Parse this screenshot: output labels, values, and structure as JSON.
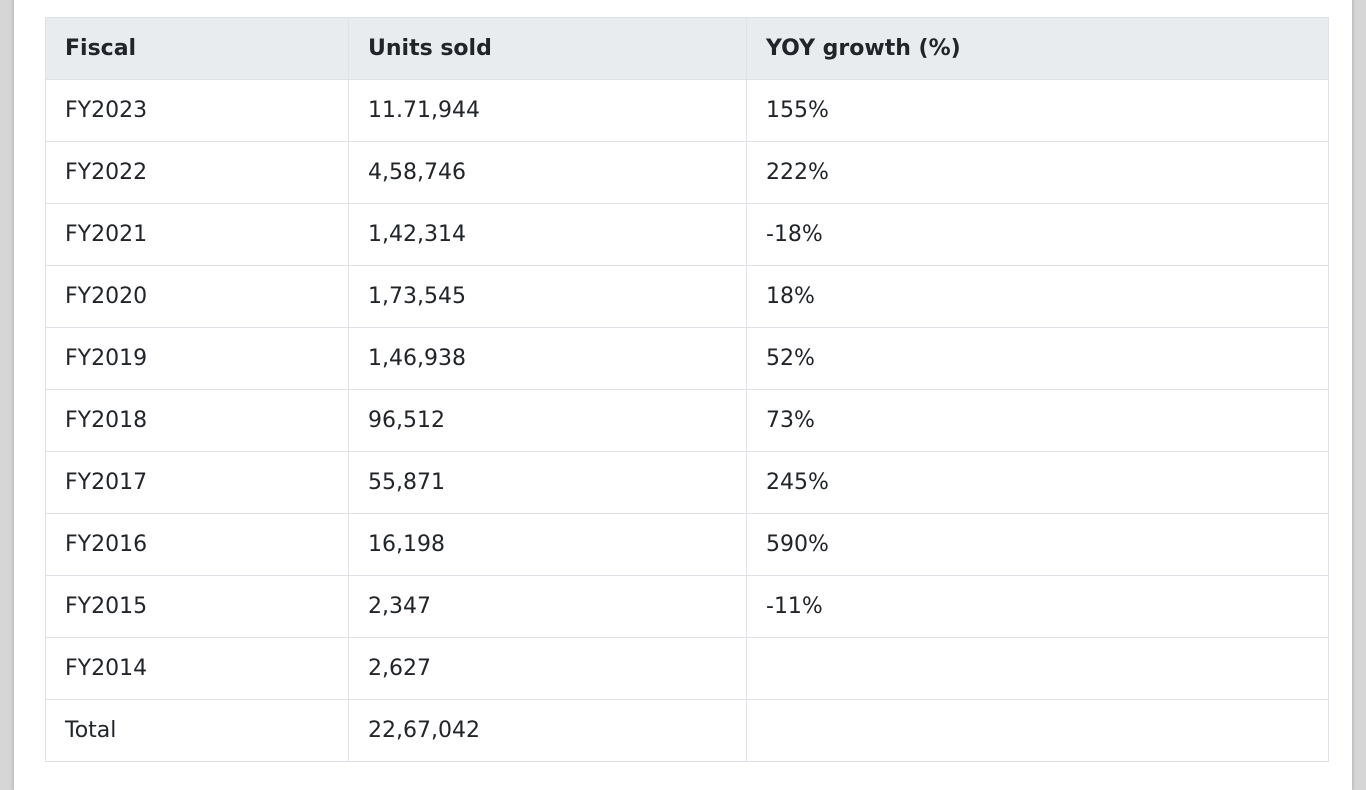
{
  "table": {
    "header": [
      "Fiscal",
      "Units sold",
      "YOY growth (%)"
    ],
    "rows": [
      [
        "FY2023",
        "11.71,944",
        "155%"
      ],
      [
        "FY2022",
        "4,58,746",
        "222%"
      ],
      [
        "FY2021",
        "1,42,314",
        "-18%"
      ],
      [
        "FY2020",
        "1,73,545",
        "18%"
      ],
      [
        "FY2019",
        "1,46,938",
        "52%"
      ],
      [
        "FY2018",
        "96,512",
        "73%"
      ],
      [
        "FY2017",
        "55,871",
        "245%"
      ],
      [
        "FY2016",
        "16,198",
        "590%"
      ],
      [
        "FY2015",
        "2,347",
        "-11%"
      ],
      [
        "FY2014",
        "2,627"
      ],
      [
        "Total",
        "22,67,042"
      ]
    ]
  }
}
